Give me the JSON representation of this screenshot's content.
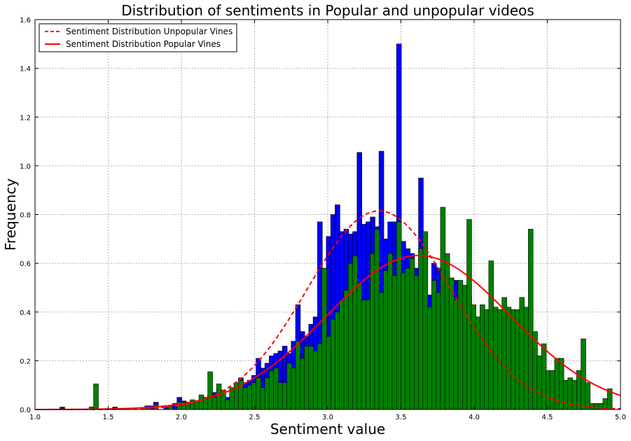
{
  "chart_data": {
    "type": "bar",
    "title": "Distribution of sentiments in Popular and unpopular videos",
    "xlabel": "Sentiment value",
    "ylabel": "Frequency",
    "xlim": [
      1.0,
      5.0
    ],
    "ylim": [
      0.0,
      1.6
    ],
    "xticks": [
      1.0,
      1.5,
      2.0,
      2.5,
      3.0,
      3.5,
      4.0,
      4.5,
      5.0
    ],
    "xtick_labels": [
      "1.0",
      "1.5",
      "2.0",
      "2.5",
      "3.0",
      "3.5",
      "4.0",
      "4.5",
      "5.0"
    ],
    "yticks": [
      0.0,
      0.2,
      0.4,
      0.6,
      0.8,
      1.0,
      1.2,
      1.4,
      1.6
    ],
    "ytick_labels": [
      "0.0",
      "0.2",
      "0.4",
      "0.6",
      "0.8",
      "1.0",
      "1.2",
      "1.4",
      "1.6"
    ],
    "grid": true,
    "legend_position": "top-left",
    "bin_width": 0.033,
    "histograms": [
      {
        "color": "#0000ff",
        "bins": [
          [
            1.17,
            0.01
          ],
          [
            1.37,
            0.01
          ],
          [
            1.4,
            0.01
          ],
          [
            1.53,
            0.01
          ],
          [
            1.75,
            0.015
          ],
          [
            1.78,
            0.015
          ],
          [
            1.81,
            0.03
          ],
          [
            1.88,
            0.01
          ],
          [
            1.91,
            0.015
          ],
          [
            1.94,
            0.025
          ],
          [
            1.97,
            0.05
          ],
          [
            2.0,
            0.035
          ],
          [
            2.03,
            0.02
          ],
          [
            2.06,
            0.03
          ],
          [
            2.09,
            0.03
          ],
          [
            2.15,
            0.04
          ],
          [
            2.18,
            0.06
          ],
          [
            2.21,
            0.07
          ],
          [
            2.24,
            0.08
          ],
          [
            2.27,
            0.06
          ],
          [
            2.3,
            0.05
          ],
          [
            2.33,
            0.08
          ],
          [
            2.36,
            0.1
          ],
          [
            2.39,
            0.13
          ],
          [
            2.42,
            0.11
          ],
          [
            2.45,
            0.12
          ],
          [
            2.48,
            0.14
          ],
          [
            2.51,
            0.21
          ],
          [
            2.54,
            0.17
          ],
          [
            2.57,
            0.19
          ],
          [
            2.6,
            0.22
          ],
          [
            2.63,
            0.23
          ],
          [
            2.66,
            0.24
          ],
          [
            2.69,
            0.26
          ],
          [
            2.72,
            0.23
          ],
          [
            2.75,
            0.28
          ],
          [
            2.78,
            0.43
          ],
          [
            2.81,
            0.32
          ],
          [
            2.84,
            0.3
          ],
          [
            2.87,
            0.35
          ],
          [
            2.9,
            0.38
          ],
          [
            2.93,
            0.77
          ],
          [
            2.96,
            0.33
          ],
          [
            2.99,
            0.71
          ],
          [
            3.02,
            0.8
          ],
          [
            3.05,
            0.84
          ],
          [
            3.08,
            0.73
          ],
          [
            3.11,
            0.74
          ],
          [
            3.14,
            0.72
          ],
          [
            3.17,
            0.73
          ],
          [
            3.2,
            1.055
          ],
          [
            3.23,
            0.76
          ],
          [
            3.26,
            0.77
          ],
          [
            3.29,
            0.79
          ],
          [
            3.32,
            0.75
          ],
          [
            3.35,
            1.06
          ],
          [
            3.38,
            0.7
          ],
          [
            3.41,
            0.77
          ],
          [
            3.44,
            0.77
          ],
          [
            3.47,
            1.5
          ],
          [
            3.5,
            0.69
          ],
          [
            3.53,
            0.66
          ],
          [
            3.56,
            0.64
          ],
          [
            3.59,
            0.58
          ],
          [
            3.62,
            0.95
          ],
          [
            3.65,
            0.72
          ],
          [
            3.68,
            0.47
          ],
          [
            3.71,
            0.6
          ],
          [
            3.74,
            0.58
          ],
          [
            3.77,
            0.55
          ],
          [
            3.8,
            0.54
          ],
          [
            3.83,
            0.51
          ],
          [
            3.86,
            0.53
          ],
          [
            3.89,
            0.5
          ],
          [
            3.92,
            0.49
          ],
          [
            3.95,
            0.47
          ]
        ]
      },
      {
        "color": "#008000",
        "bins": [
          [
            1.17,
            0.005
          ],
          [
            1.37,
            0.01
          ],
          [
            1.4,
            0.105
          ],
          [
            1.53,
            0.005
          ],
          [
            1.75,
            0.01
          ],
          [
            1.81,
            0.02
          ],
          [
            1.91,
            0.01
          ],
          [
            1.97,
            0.03
          ],
          [
            2.0,
            0.03
          ],
          [
            2.03,
            0.03
          ],
          [
            2.06,
            0.04
          ],
          [
            2.09,
            0.035
          ],
          [
            2.12,
            0.06
          ],
          [
            2.15,
            0.05
          ],
          [
            2.18,
            0.155
          ],
          [
            2.21,
            0.05
          ],
          [
            2.24,
            0.105
          ],
          [
            2.27,
            0.08
          ],
          [
            2.3,
            0.04
          ],
          [
            2.33,
            0.09
          ],
          [
            2.36,
            0.11
          ],
          [
            2.39,
            0.12
          ],
          [
            2.42,
            0.09
          ],
          [
            2.45,
            0.1
          ],
          [
            2.48,
            0.11
          ],
          [
            2.51,
            0.13
          ],
          [
            2.54,
            0.09
          ],
          [
            2.57,
            0.13
          ],
          [
            2.6,
            0.16
          ],
          [
            2.63,
            0.17
          ],
          [
            2.66,
            0.11
          ],
          [
            2.69,
            0.11
          ],
          [
            2.72,
            0.19
          ],
          [
            2.75,
            0.17
          ],
          [
            2.78,
            0.28
          ],
          [
            2.81,
            0.21
          ],
          [
            2.84,
            0.26
          ],
          [
            2.87,
            0.26
          ],
          [
            2.9,
            0.24
          ],
          [
            2.93,
            0.27
          ],
          [
            2.96,
            0.58
          ],
          [
            2.99,
            0.3
          ],
          [
            3.02,
            0.37
          ],
          [
            3.05,
            0.4
          ],
          [
            3.08,
            0.45
          ],
          [
            3.11,
            0.49
          ],
          [
            3.14,
            0.6
          ],
          [
            3.17,
            0.63
          ],
          [
            3.2,
            0.52
          ],
          [
            3.23,
            0.45
          ],
          [
            3.26,
            0.45
          ],
          [
            3.29,
            0.64
          ],
          [
            3.32,
            0.74
          ],
          [
            3.35,
            0.48
          ],
          [
            3.38,
            0.57
          ],
          [
            3.41,
            0.64
          ],
          [
            3.44,
            0.55
          ],
          [
            3.47,
            0.77
          ],
          [
            3.5,
            0.56
          ],
          [
            3.53,
            0.58
          ],
          [
            3.56,
            0.62
          ],
          [
            3.59,
            0.55
          ],
          [
            3.62,
            0.66
          ],
          [
            3.65,
            0.73
          ],
          [
            3.68,
            0.42
          ],
          [
            3.71,
            0.53
          ],
          [
            3.74,
            0.48
          ],
          [
            3.77,
            0.83
          ],
          [
            3.8,
            0.64
          ],
          [
            3.83,
            0.54
          ],
          [
            3.86,
            0.45
          ],
          [
            3.89,
            0.53
          ],
          [
            3.92,
            0.51
          ],
          [
            3.95,
            0.78
          ],
          [
            3.98,
            0.43
          ],
          [
            4.01,
            0.38
          ],
          [
            4.04,
            0.43
          ],
          [
            4.07,
            0.41
          ],
          [
            4.1,
            0.61
          ],
          [
            4.13,
            0.42
          ],
          [
            4.16,
            0.41
          ],
          [
            4.19,
            0.46
          ],
          [
            4.22,
            0.42
          ],
          [
            4.25,
            0.41
          ],
          [
            4.28,
            0.41
          ],
          [
            4.31,
            0.46
          ],
          [
            4.34,
            0.42
          ],
          [
            4.37,
            0.74
          ],
          [
            4.4,
            0.32
          ],
          [
            4.43,
            0.22
          ],
          [
            4.46,
            0.27
          ],
          [
            4.49,
            0.16
          ],
          [
            4.52,
            0.16
          ],
          [
            4.55,
            0.21
          ],
          [
            4.58,
            0.21
          ],
          [
            4.61,
            0.12
          ],
          [
            4.64,
            0.13
          ],
          [
            4.67,
            0.12
          ],
          [
            4.7,
            0.16
          ],
          [
            4.73,
            0.29
          ],
          [
            4.76,
            0.11
          ],
          [
            4.79,
            0.025
          ],
          [
            4.82,
            0.025
          ],
          [
            4.85,
            0.025
          ],
          [
            4.88,
            0.045
          ],
          [
            4.91,
            0.085
          ]
        ]
      }
    ],
    "series": [
      {
        "name": "Sentiment Distribution Unpopular Vines",
        "type": "line",
        "style": "dashed",
        "color": "#ff0000",
        "mean": 3.35,
        "std": 0.49,
        "peak": 0.815
      },
      {
        "name": "Sentiment Distribution Popular Vines",
        "type": "line",
        "style": "solid",
        "color": "#ff0000",
        "mean": 3.62,
        "std": 0.63,
        "peak": 0.632
      }
    ],
    "colors": {
      "grid": "#b0b0b0",
      "bar_edge": "#000000"
    }
  }
}
